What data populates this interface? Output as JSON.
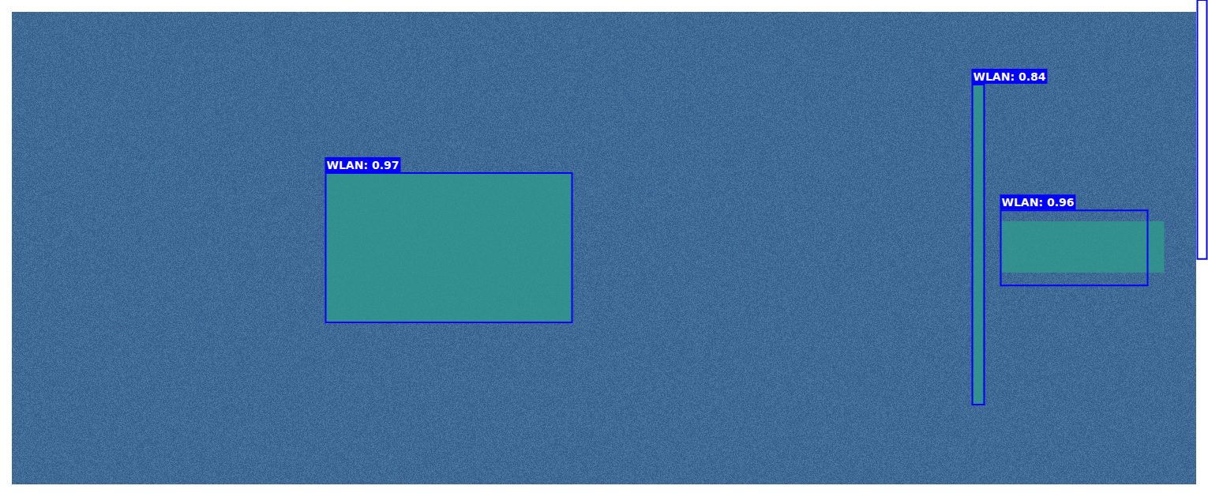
{
  "chart_data": {
    "type": "detection",
    "xlim": [
      0,
      1
    ],
    "ylim": [
      0,
      1
    ],
    "tick_labels": false,
    "grid": false,
    "signals": {
      "color": "#2f9a8c",
      "regions": [
        {
          "x0": 0.265,
          "x1": 0.473,
          "y0": 0.341,
          "y1": 0.657
        },
        {
          "x0": 0.812,
          "x1": 0.82,
          "y0": 0.154,
          "y1": 0.831
        },
        {
          "x0": 0.835,
          "x1": 0.973,
          "y0": 0.443,
          "y1": 0.552
        }
      ]
    },
    "boxes": {
      "color": "#0000ff",
      "items": [
        {
          "label": "WLAN: 0.97",
          "x0": 0.265,
          "x1": 0.473,
          "y0": 0.341,
          "y1": 0.657
        },
        {
          "label": "WLAN: 0.84",
          "x0": 0.811,
          "x1": 0.821,
          "y0": 0.154,
          "y1": 0.831
        },
        {
          "label": "WLAN: 0.96",
          "x0": 0.835,
          "x1": 0.959,
          "y0": 0.42,
          "y1": 0.579
        },
        {
          "x0": 1.001,
          "x1": 1.009,
          "y0": -0.025,
          "y1": 0.523
        }
      ]
    }
  }
}
